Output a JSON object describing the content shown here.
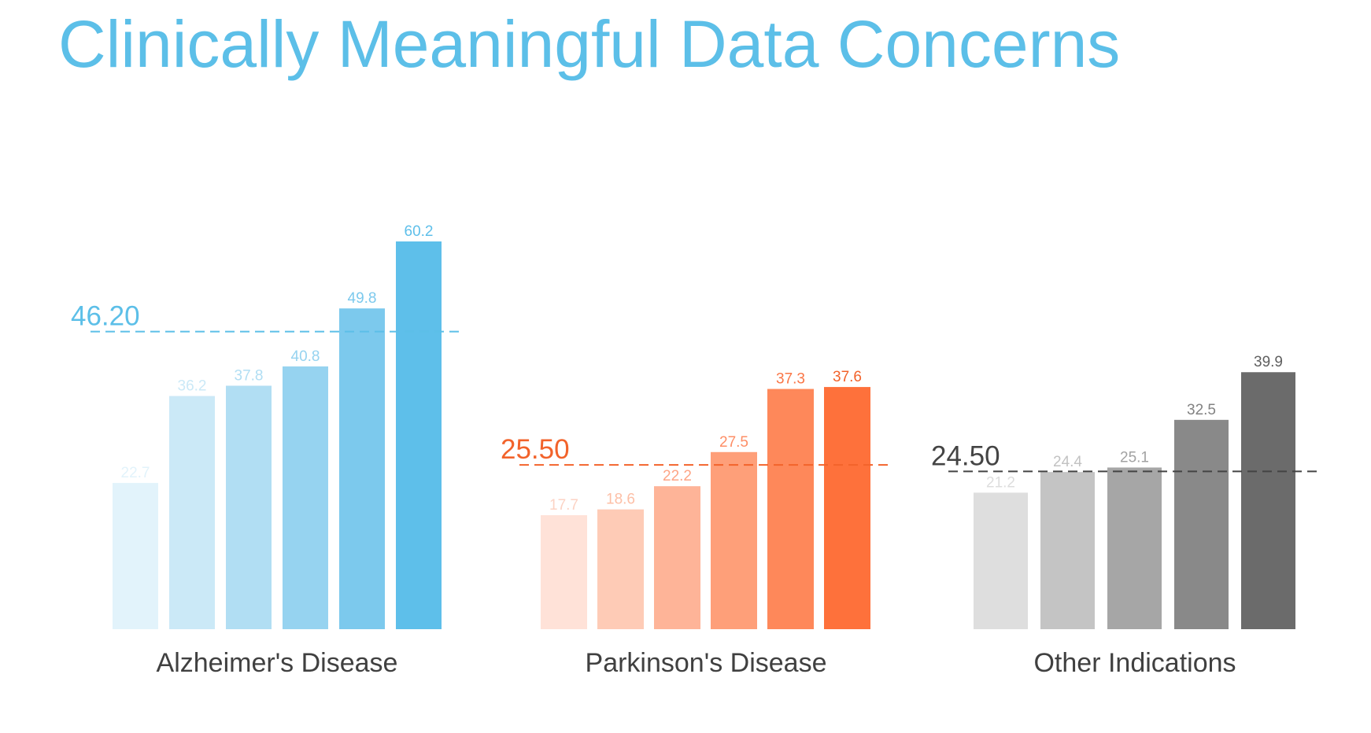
{
  "title": "Clinically Meaningful Data Concerns",
  "chart_data": [
    {
      "type": "bar",
      "group_label": "Alzheimer's Disease",
      "values": [
        22.7,
        36.2,
        37.8,
        40.8,
        49.8,
        60.2
      ],
      "value_labels": [
        "22.7",
        "36.2",
        "37.8",
        "40.8",
        "49.8",
        "60.2"
      ],
      "reference_line": 46.2,
      "reference_label": "46.20",
      "colors": [
        "#e2f3fb",
        "#cbe9f7",
        "#b1def3",
        "#96d3f0",
        "#7cc9ed",
        "#5ebfea"
      ],
      "label_colors": [
        "#e2f3fb",
        "#cbe9f7",
        "#b1def3",
        "#96d3f0",
        "#7cc9ed",
        "#5ebfea"
      ],
      "accent": "#5cbfe8"
    },
    {
      "type": "bar",
      "group_label": "Parkinson's Disease",
      "values": [
        17.7,
        18.6,
        22.2,
        27.5,
        37.3,
        37.6
      ],
      "value_labels": [
        "17.7",
        "18.6",
        "22.2",
        "27.5",
        "37.3",
        "37.6"
      ],
      "reference_line": 25.5,
      "reference_label": "25.50",
      "colors": [
        "#ffe2d8",
        "#fecbb6",
        "#feb498",
        "#fe9f79",
        "#fe885a",
        "#fe713b"
      ],
      "label_colors": [
        "#fcd3c4",
        "#fdbfa6",
        "#fea586",
        "#fe8e66",
        "#fa7646",
        "#f2622a"
      ],
      "accent": "#f2632b"
    },
    {
      "type": "bar",
      "group_label": "Other Indications",
      "values": [
        21.2,
        24.4,
        25.1,
        32.5,
        39.9
      ],
      "value_labels": [
        "21.2",
        "24.4",
        "25.1",
        "32.5",
        "39.9"
      ],
      "reference_line": 24.5,
      "reference_label": "24.50",
      "colors": [
        "#dedede",
        "#c4c4c4",
        "#a6a6a6",
        "#898989",
        "#6b6b6b"
      ],
      "label_colors": [
        "#dddddd",
        "#c2c2c2",
        "#a2a2a2",
        "#828282",
        "#5f5f5f"
      ],
      "accent": "#444444"
    }
  ]
}
